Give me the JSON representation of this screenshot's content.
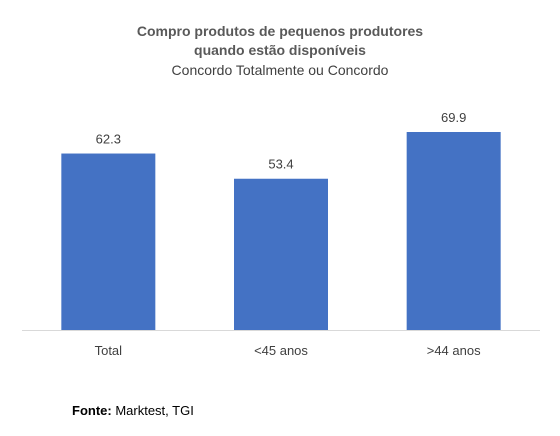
{
  "chart_data": {
    "type": "bar",
    "title_lines": [
      "Compro produtos de pequenos produtores",
      "quando estão disponíveis"
    ],
    "subtitle": "Concordo Totalmente ou Concordo",
    "categories": [
      "Total",
      "<45 anos",
      ">44 anos"
    ],
    "values": [
      62.3,
      53.4,
      69.9
    ],
    "value_labels": [
      "62.3",
      "53.4",
      "69.9"
    ],
    "xlabel": "",
    "ylabel": "",
    "ylim": [
      0,
      70
    ],
    "grid": false,
    "legend": "none",
    "bar_color": "#4472C4",
    "baseline_color": "#D9D9D9"
  },
  "footnote": {
    "label": "Fonte:",
    "text": " Marktest, TGI"
  }
}
